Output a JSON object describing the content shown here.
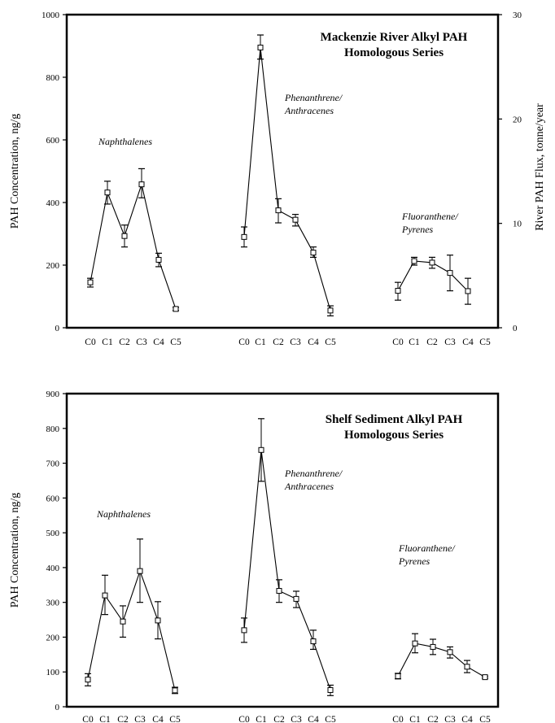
{
  "chart_data": [
    {
      "type": "line",
      "title": "Mackenzie River Alkyl PAH\nHomologous Series",
      "ylabel": "PAH Concentration, ng/g",
      "y2label": "River PAH Flux, tonne/year",
      "ylim": [
        0,
        1000
      ],
      "yticks": [
        0,
        200,
        400,
        600,
        800,
        1000
      ],
      "y2lim": [
        0,
        30
      ],
      "y2ticks": [
        0,
        10,
        20,
        30
      ],
      "grid": false,
      "groups": [
        {
          "label": "Naphthalenes",
          "categories": [
            "C0",
            "C1",
            "C2",
            "C3",
            "C4",
            "C5"
          ],
          "values": [
            145,
            432,
            293,
            458,
            217,
            60
          ],
          "err_low": [
            130,
            395,
            258,
            415,
            195,
            55
          ],
          "err_high": [
            158,
            468,
            328,
            508,
            238,
            65
          ]
        },
        {
          "label": "Phenanthrene/\nAnthracenes",
          "categories": [
            "C0",
            "C1",
            "C2",
            "C3",
            "C4",
            "C5"
          ],
          "values": [
            290,
            895,
            375,
            345,
            240,
            55
          ],
          "err_low": [
            258,
            858,
            335,
            325,
            225,
            38
          ],
          "err_high": [
            322,
            935,
            412,
            362,
            258,
            70
          ]
        },
        {
          "label": "Fluoranthene/\nPyrenes",
          "categories": [
            "C0",
            "C1",
            "C2",
            "C3",
            "C4",
            "C5"
          ],
          "values": [
            118,
            213,
            208,
            175,
            117,
            null
          ],
          "err_low": [
            88,
            200,
            190,
            118,
            75,
            null
          ],
          "err_high": [
            145,
            225,
            225,
            232,
            158,
            null
          ]
        }
      ]
    },
    {
      "type": "line",
      "title": "Shelf Sediment Alkyl PAH\nHomologous Series",
      "ylabel": "PAH Concentration, ng/g",
      "ylim": [
        0,
        900
      ],
      "yticks": [
        0,
        100,
        200,
        300,
        400,
        500,
        600,
        700,
        800,
        900
      ],
      "grid": false,
      "groups": [
        {
          "label": "Naphthalenes",
          "categories": [
            "C0",
            "C1",
            "C2",
            "C3",
            "C4",
            "C5"
          ],
          "values": [
            78,
            320,
            245,
            390,
            248,
            47
          ],
          "err_low": [
            60,
            265,
            200,
            300,
            195,
            38
          ],
          "err_high": [
            95,
            378,
            290,
            482,
            302,
            56
          ]
        },
        {
          "label": "Phenanthrene/\nAnthracenes",
          "categories": [
            "C0",
            "C1",
            "C2",
            "C3",
            "C4",
            "C5"
          ],
          "values": [
            220,
            738,
            333,
            310,
            188,
            48
          ],
          "err_low": [
            185,
            648,
            300,
            285,
            165,
            32
          ],
          "err_high": [
            255,
            828,
            365,
            332,
            220,
            62
          ]
        },
        {
          "label": "Fluoranthene/\nPyrenes",
          "categories": [
            "C0",
            "C1",
            "C2",
            "C3",
            "C4",
            "C5"
          ],
          "values": [
            88,
            182,
            172,
            157,
            115,
            85
          ],
          "err_low": [
            80,
            155,
            150,
            140,
            98,
            82
          ],
          "err_high": [
            96,
            210,
            194,
            172,
            133,
            88
          ]
        }
      ]
    }
  ]
}
